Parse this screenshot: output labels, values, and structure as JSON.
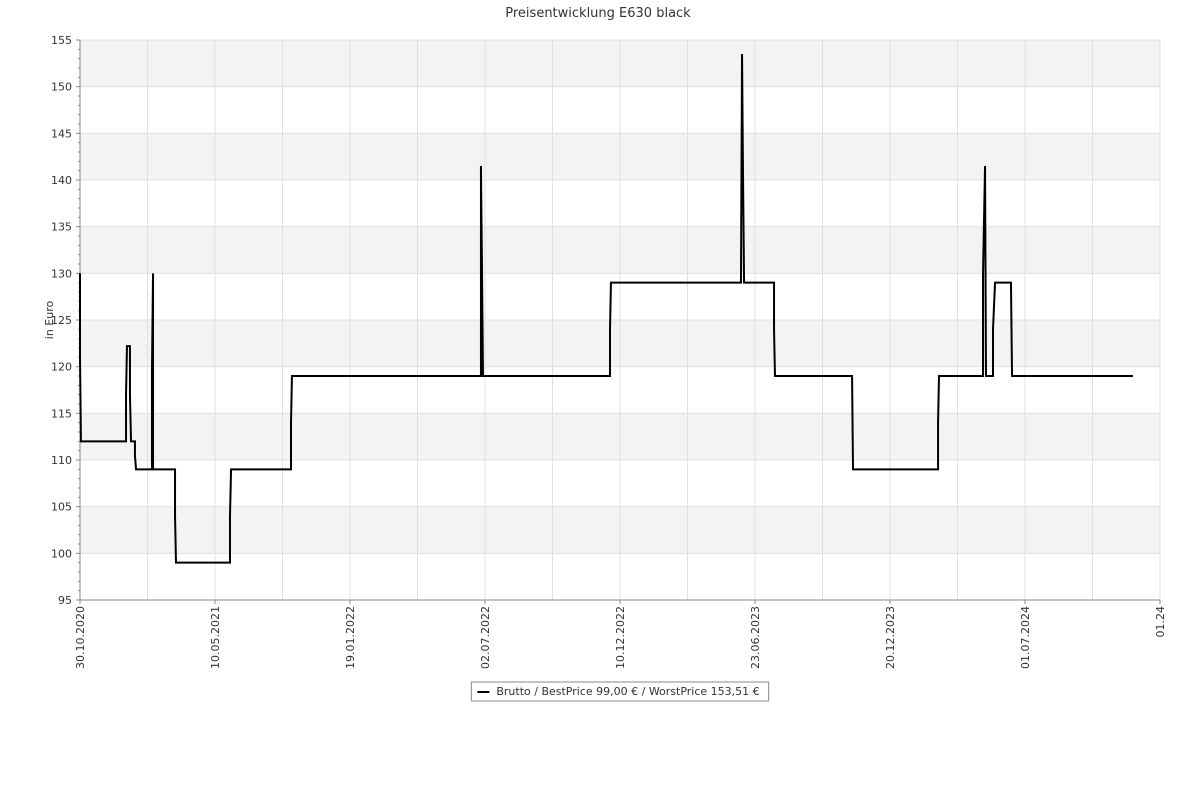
{
  "chart_data": {
    "type": "line",
    "title": "Preisentwicklung E630 black",
    "ylabel": "in Euro",
    "x": [
      0,
      0,
      0.007,
      0.341,
      0.341,
      0.348,
      0.37,
      0.37,
      0.378,
      0.407,
      0.407,
      0.415,
      0.533,
      0.533,
      0.541,
      0.541,
      0.704,
      0.704,
      0.711,
      1.111,
      1.111,
      1.119,
      1.563,
      1.563,
      1.57,
      2.97,
      2.97,
      2.978,
      2.985,
      3.926,
      3.926,
      3.933,
      4.896,
      4.904,
      4.911,
      4.919,
      5.141,
      5.141,
      5.148,
      5.719,
      5.726,
      6.356,
      6.356,
      6.363,
      6.689,
      6.689,
      6.704,
      6.711,
      6.763,
      6.763,
      6.778,
      6.896,
      6.904,
      7.8
    ],
    "series": [
      {
        "name": "Brutto / BestPrice  99,00 € / WorstPrice  153,51 €",
        "color": "#000000",
        "values": [
          130,
          121,
          112,
          112,
          117,
          122.2,
          122.2,
          117,
          112,
          112,
          110.5,
          109,
          109,
          119.5,
          130,
          109,
          109,
          104,
          99,
          99,
          104,
          109,
          109,
          114,
          119,
          119,
          141.5,
          130,
          119,
          119,
          124,
          129,
          129,
          153.5,
          141,
          129,
          129,
          124,
          119,
          119,
          109,
          109,
          114,
          119,
          119,
          130,
          141.5,
          119,
          119,
          124,
          129,
          129,
          119,
          119
        ]
      }
    ],
    "xlim": [
      0,
      8
    ],
    "xticks": [
      {
        "value": 0,
        "label": "30.10.2020"
      },
      {
        "value": 1,
        "label": "10.05.2021"
      },
      {
        "value": 2,
        "label": "19.01.2022"
      },
      {
        "value": 3,
        "label": "02.07.2022"
      },
      {
        "value": 4,
        "label": "10.12.2022"
      },
      {
        "value": 5,
        "label": "23.06.2023"
      },
      {
        "value": 6,
        "label": "20.12.2023"
      },
      {
        "value": 7,
        "label": "01.07.2024"
      },
      {
        "value": 8,
        "label": "01.24"
      }
    ],
    "ylim": [
      95,
      155
    ],
    "yticks": [
      95,
      100,
      105,
      110,
      115,
      120,
      125,
      130,
      135,
      140,
      145,
      150,
      155
    ],
    "grid": true,
    "legend": "bottom"
  }
}
